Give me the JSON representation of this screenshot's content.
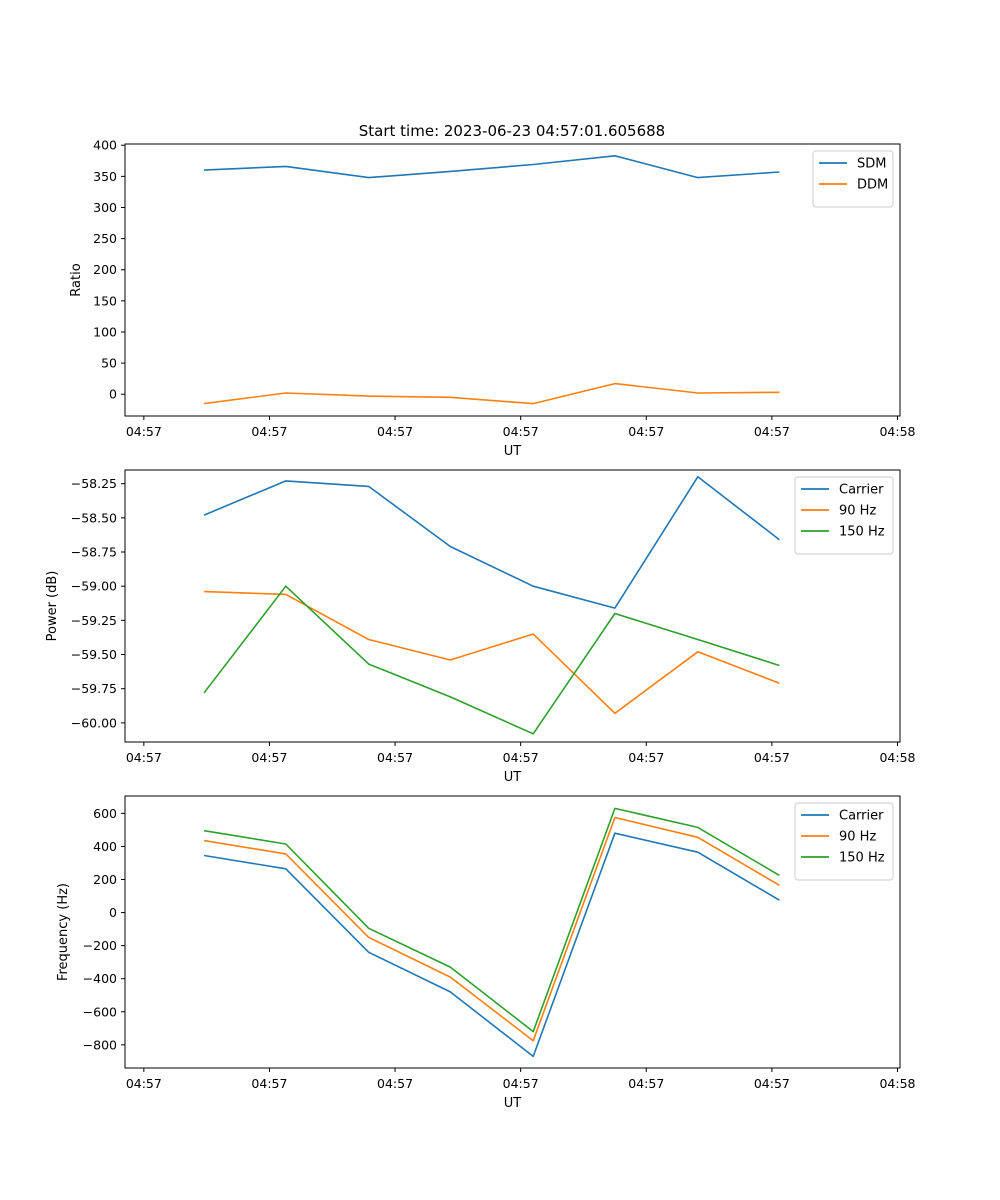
{
  "figure": {
    "title": "Start time: 2023-06-23 04:57:01.605688"
  },
  "chart_data": [
    {
      "type": "line",
      "title": "Start time: 2023-06-23 04:57:01.605688",
      "xlabel": "UT",
      "ylabel": "Ratio",
      "x_ticks": [
        "04:57",
        "04:57",
        "04:57",
        "04:57",
        "04:57",
        "04:57",
        "04:58"
      ],
      "x_tick_positions": [
        0,
        1,
        2,
        3,
        4,
        5,
        6
      ],
      "xlim": [
        -0.15,
        6.02
      ],
      "x": [
        0.48,
        1.13,
        1.79,
        2.44,
        3.1,
        3.75,
        4.41,
        5.06
      ],
      "yticks": [
        0,
        50,
        100,
        150,
        200,
        250,
        300,
        350,
        400
      ],
      "ylim": [
        -35,
        402
      ],
      "grid": false,
      "legend_position": "upper right",
      "series": [
        {
          "name": "SDM",
          "color": "#1f77b4",
          "values": [
            360,
            366,
            348,
            358,
            369,
            383,
            348,
            357
          ]
        },
        {
          "name": "DDM",
          "color": "#ff7f0e",
          "values": [
            -15,
            2,
            -3,
            -5,
            -15,
            17,
            2,
            3
          ]
        }
      ]
    },
    {
      "type": "line",
      "xlabel": "UT",
      "ylabel": "Power (dB)",
      "x_ticks": [
        "04:57",
        "04:57",
        "04:57",
        "04:57",
        "04:57",
        "04:57",
        "04:58"
      ],
      "x_tick_positions": [
        0,
        1,
        2,
        3,
        4,
        5,
        6
      ],
      "xlim": [
        -0.15,
        6.02
      ],
      "x": [
        0.48,
        1.13,
        1.79,
        2.44,
        3.1,
        3.75,
        4.41,
        5.06
      ],
      "yticks": [
        -60.0,
        -59.75,
        -59.5,
        -59.25,
        -59.0,
        -58.75,
        -58.5,
        -58.25
      ],
      "ytick_labels": [
        "−60.00",
        "−59.75",
        "−59.50",
        "−59.25",
        "−59.00",
        "−58.75",
        "−58.50",
        "−58.25"
      ],
      "ylim": [
        -60.14,
        -58.15
      ],
      "grid": false,
      "legend_position": "upper right",
      "series": [
        {
          "name": "Carrier",
          "color": "#1f77b4",
          "values": [
            -58.48,
            -58.23,
            -58.27,
            -58.71,
            -59.0,
            -59.16,
            -58.2,
            -58.66
          ]
        },
        {
          "name": "90 Hz",
          "color": "#ff7f0e",
          "values": [
            -59.04,
            -59.06,
            -59.39,
            -59.54,
            -59.35,
            -59.93,
            -59.48,
            -59.71
          ]
        },
        {
          "name": "150 Hz",
          "color": "#2ca02c",
          "values": [
            -59.78,
            -59.0,
            -59.57,
            -59.81,
            -60.08,
            -59.2,
            -59.39,
            -59.58
          ]
        }
      ]
    },
    {
      "type": "line",
      "xlabel": "UT",
      "ylabel": "Frequency (Hz)",
      "x_ticks": [
        "04:57",
        "04:57",
        "04:57",
        "04:57",
        "04:57",
        "04:57",
        "04:58"
      ],
      "x_tick_positions": [
        0,
        1,
        2,
        3,
        4,
        5,
        6
      ],
      "xlim": [
        -0.15,
        6.02
      ],
      "x": [
        0.48,
        1.13,
        1.79,
        2.44,
        3.1,
        3.75,
        4.41,
        5.06
      ],
      "yticks": [
        -800,
        -600,
        -400,
        -200,
        0,
        200,
        400,
        600
      ],
      "ytick_labels": [
        "−800",
        "−600",
        "−400",
        "−200",
        "0",
        "200",
        "400",
        "600"
      ],
      "ylim": [
        -940,
        705
      ],
      "grid": false,
      "legend_position": "upper right",
      "series": [
        {
          "name": "Carrier",
          "color": "#1f77b4",
          "values": [
            345,
            265,
            -240,
            -480,
            -870,
            480,
            365,
            75
          ]
        },
        {
          "name": "90 Hz",
          "color": "#ff7f0e",
          "values": [
            435,
            355,
            -150,
            -390,
            -775,
            575,
            455,
            165
          ]
        },
        {
          "name": "150 Hz",
          "color": "#2ca02c",
          "values": [
            495,
            415,
            -95,
            -330,
            -720,
            630,
            515,
            225
          ]
        }
      ]
    }
  ]
}
